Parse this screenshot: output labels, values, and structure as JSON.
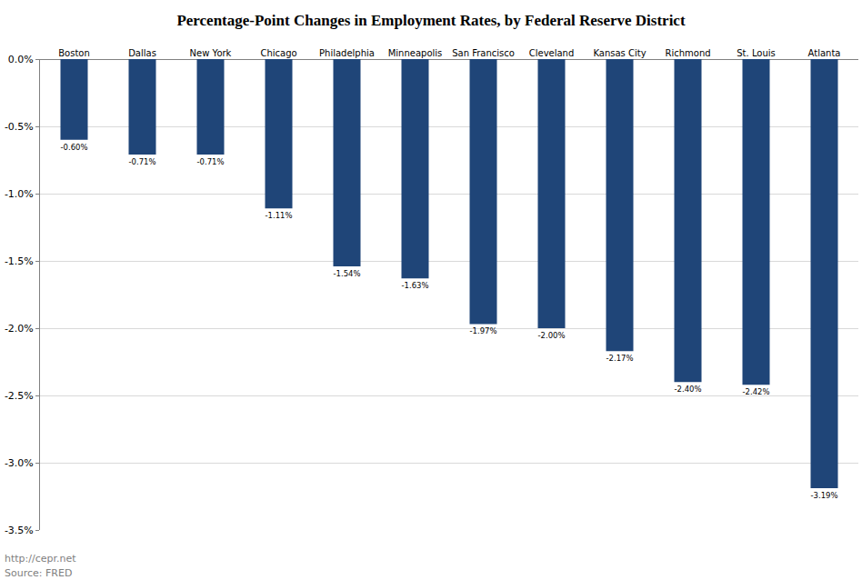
{
  "chart_data": {
    "type": "bar",
    "title": "Percentage-Point Changes in Employment Rates, by Federal Reserve District",
    "categories": [
      "Boston",
      "Dallas",
      "New York",
      "Chicago",
      "Philadelphia",
      "Minneapolis",
      "San Francisco",
      "Cleveland",
      "Kansas City",
      "Richmond",
      "St. Louis",
      "Atlanta"
    ],
    "values": [
      -0.6,
      -0.71,
      -0.71,
      -1.11,
      -1.54,
      -1.63,
      -1.97,
      -2.0,
      -2.17,
      -2.4,
      -2.42,
      -3.19
    ],
    "value_labels": [
      "-0.60%",
      "-0.71%",
      "-0.71%",
      "-1.11%",
      "-1.54%",
      "-1.63%",
      "-1.97%",
      "-2.00%",
      "-2.17%",
      "-2.40%",
      "-2.42%",
      "-3.19%"
    ],
    "data_labels": true,
    "color": "#1f4578",
    "ylim": [
      -3.5,
      0
    ],
    "yticks": [
      {
        "value": 0,
        "label": "0.0%"
      },
      {
        "value": -0.5,
        "label": "-0.5%"
      },
      {
        "value": -1.0,
        "label": "-1.0%"
      },
      {
        "value": -1.5,
        "label": "-1.5%"
      },
      {
        "value": -2.0,
        "label": "-2.0%"
      },
      {
        "value": -2.5,
        "label": "-2.5%"
      },
      {
        "value": -3.0,
        "label": "-3.0%"
      },
      {
        "value": -3.5,
        "label": "-3.5%"
      }
    ],
    "grid": true,
    "annotations": [
      "http://cepr.net",
      "Source: FRED"
    ]
  }
}
